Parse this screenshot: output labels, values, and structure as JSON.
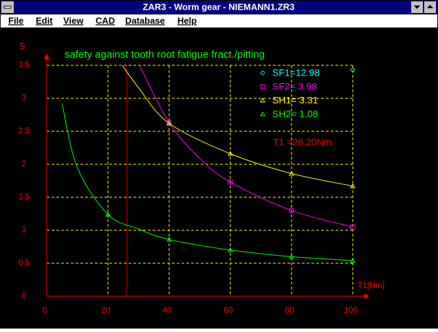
{
  "window": {
    "title": "ZAR3 - Worm gear  -  NIEMANN1.ZR3"
  },
  "menu": [
    "File",
    "Edit",
    "View",
    "CAD",
    "Database",
    "Help"
  ],
  "chart_data": {
    "type": "line",
    "title": "safety against tooth root fatigue fract./pitting",
    "y_label": "S",
    "x_label": "T1[Nm]",
    "annotation": "T1 =26.20Nm",
    "marker_line_x": 26.2,
    "xlim": [
      0,
      100
    ],
    "ylim": [
      0,
      3.5
    ],
    "xticks": [
      0,
      20,
      40,
      60,
      80,
      100
    ],
    "yticks": [
      0,
      0.5,
      1,
      1.5,
      2,
      2.5,
      3,
      3.5
    ],
    "grid": true,
    "series": [
      {
        "name": "SF1=12.98",
        "color": "#00ffff",
        "marker": "circle",
        "x": [
          100
        ],
        "values": [
          3.43
        ]
      },
      {
        "name": "SF2= 3.98",
        "color": "#ff00ff",
        "marker": "square",
        "x": [
          30.3,
          40,
          50,
          60,
          80,
          100
        ],
        "values": [
          3.5,
          2.63,
          2.09,
          1.73,
          1.3,
          1.05
        ]
      },
      {
        "name": "SH1= 3.31",
        "color": "#ffff00",
        "marker": "triangle",
        "x": [
          24.7,
          30,
          40,
          60,
          80,
          100
        ],
        "values": [
          3.5,
          3.16,
          2.62,
          2.16,
          1.86,
          1.67
        ]
      },
      {
        "name": "SH2= 1.08",
        "color": "#00ff00",
        "marker": "triangle",
        "x": [
          5,
          10,
          20,
          30,
          40,
          60,
          80,
          100
        ],
        "values": [
          2.92,
          1.95,
          1.24,
          1.02,
          0.86,
          0.7,
          0.6,
          0.54
        ]
      }
    ]
  }
}
